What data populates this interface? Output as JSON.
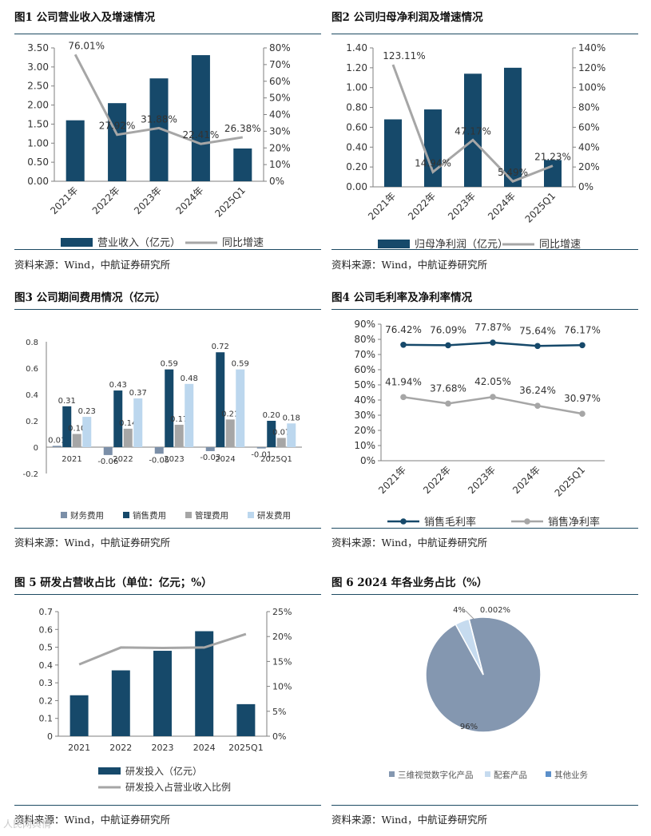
{
  "panels": [
    {
      "title": "图1 公司营业收入及增速情况",
      "source": "资料来源：Wind，中航证券研究所",
      "chart_data": {
        "type": "bar",
        "categories": [
          "2021年",
          "2022年",
          "2023年",
          "2024年",
          "2025Q1"
        ],
        "y_ticks": [
          "0.00",
          "0.50",
          "1.00",
          "1.50",
          "2.00",
          "2.50",
          "3.00",
          "3.50"
        ],
        "y2_ticks": [
          "0%",
          "10%",
          "20%",
          "30%",
          "40%",
          "50%",
          "60%",
          "70%",
          "80%"
        ],
        "ylim": [
          0,
          3.5
        ],
        "y2lim": [
          0,
          80
        ],
        "series": [
          {
            "name": "营业收入（亿元）",
            "kind": "bar",
            "values": [
              1.6,
              2.05,
              2.7,
              3.31,
              0.86
            ]
          },
          {
            "name": "同比增速",
            "kind": "line",
            "values": [
              76.01,
              27.92,
              31.88,
              22.41,
              26.38
            ],
            "labels": [
              "76.01%",
              "27.92%",
              "31.88%",
              "22.41%",
              "26.38%"
            ]
          }
        ]
      }
    },
    {
      "title": "图2 公司归母净利润及增速情况",
      "source": "资料来源：Wind，中航证券研究所",
      "chart_data": {
        "type": "bar",
        "categories": [
          "2021年",
          "2022年",
          "2023年",
          "2024年",
          "2025Q1"
        ],
        "y_ticks": [
          "0.00",
          "0.20",
          "0.40",
          "0.60",
          "0.80",
          "1.00",
          "1.20",
          "1.40"
        ],
        "y2_ticks": [
          "0%",
          "20%",
          "40%",
          "60%",
          "80%",
          "100%",
          "120%",
          "140%"
        ],
        "ylim": [
          0,
          1.4
        ],
        "y2lim": [
          0,
          140
        ],
        "series": [
          {
            "name": "归母净利润（亿元）",
            "kind": "bar",
            "values": [
              0.68,
              0.78,
              1.14,
              1.2,
              0.27
            ]
          },
          {
            "name": "同比增速",
            "kind": "line",
            "values": [
              123.11,
              14.94,
              47.17,
              5.49,
              21.23
            ],
            "labels": [
              "123.11%",
              "14.94%",
              "47.17%",
              "5.49%",
              "21.23%"
            ]
          }
        ]
      }
    },
    {
      "title": "图3 公司期间费用情况（亿元）",
      "source": "资料来源：Wind，中航证券研究所",
      "chart_data": {
        "type": "bar",
        "categories": [
          "2021",
          "2022",
          "2023",
          "2024",
          "2025Q1"
        ],
        "y_ticks": [
          "-0.2",
          "0",
          "0.2",
          "0.4",
          "0.6",
          "0.8"
        ],
        "ylim": [
          -0.2,
          0.8
        ],
        "series": [
          {
            "name": "财务费用",
            "color": "#7b8fa8",
            "values": [
              0.01,
              -0.06,
              -0.05,
              -0.03,
              -0.01
            ],
            "labels": [
              "0.01",
              "-0.06",
              "-0.05",
              "-0.03",
              "-0.01"
            ]
          },
          {
            "name": "销售费用",
            "color": "#16496a",
            "values": [
              0.31,
              0.43,
              0.59,
              0.72,
              0.2
            ],
            "labels": [
              "0.31",
              "0.43",
              "0.59",
              "0.72",
              "0.20"
            ]
          },
          {
            "name": "管理费用",
            "color": "#a6a6a6",
            "values": [
              0.1,
              0.14,
              0.17,
              0.21,
              0.07
            ],
            "labels": [
              "0.10",
              "0.14",
              "0.17",
              "0.21",
              "0.07"
            ]
          },
          {
            "name": "研发费用",
            "color": "#bcd7ee",
            "values": [
              0.23,
              0.37,
              0.48,
              0.59,
              0.18
            ],
            "labels": [
              "0.23",
              "0.37",
              "0.48",
              "0.59",
              "0.18"
            ]
          }
        ]
      }
    },
    {
      "title": "图4 公司毛利率及净利率情况",
      "source": "资料来源：Wind，中航证券研究所",
      "chart_data": {
        "type": "line",
        "categories": [
          "2021年",
          "2022年",
          "2023年",
          "2024年",
          "2025Q1"
        ],
        "y_ticks": [
          "0%",
          "10%",
          "20%",
          "30%",
          "40%",
          "50%",
          "60%",
          "70%",
          "80%",
          "90%"
        ],
        "ylim": [
          0,
          90
        ],
        "series": [
          {
            "name": "销售毛利率",
            "color": "#16496a",
            "values": [
              76.42,
              76.09,
              77.87,
              75.64,
              76.17
            ],
            "labels": [
              "76.42%",
              "76.09%",
              "77.87%",
              "75.64%",
              "76.17%"
            ]
          },
          {
            "name": "销售净利率",
            "color": "#a6a6a6",
            "values": [
              41.94,
              37.68,
              42.05,
              36.24,
              30.97
            ],
            "labels": [
              "41.94%",
              "37.68%",
              "42.05%",
              "36.24%",
              "30.97%"
            ]
          }
        ]
      }
    },
    {
      "title": "图 5 研发占营收占比（单位：亿元；%）",
      "source": "资料来源：Wind，中航证券研究所",
      "chart_data": {
        "type": "bar",
        "categories": [
          "2021",
          "2022",
          "2023",
          "2024",
          "2025Q1"
        ],
        "y_ticks": [
          "0",
          "0.1",
          "0.2",
          "0.3",
          "0.4",
          "0.5",
          "0.6",
          "0.7"
        ],
        "y2_ticks": [
          "0%",
          "5%",
          "10%",
          "15%",
          "20%",
          "25%"
        ],
        "ylim": [
          0,
          0.7
        ],
        "y2lim": [
          0,
          25
        ],
        "series": [
          {
            "name": "研发投入（亿元）",
            "kind": "bar",
            "values": [
              0.23,
              0.37,
              0.48,
              0.59,
              0.18
            ]
          },
          {
            "name": "研发投入占营业收入比例",
            "kind": "line",
            "values": [
              14.4,
              17.8,
              17.7,
              17.8,
              20.5
            ]
          }
        ]
      }
    },
    {
      "title": "图 6 2024 年各业务占比（%）",
      "source": "资料来源：Wind，中航证券研究所",
      "chart_data": {
        "type": "pie",
        "slices": [
          {
            "name": "三维视觉数字化产品",
            "value": 95.998,
            "label": "96%",
            "color": "#8497b0"
          },
          {
            "name": "配套产品",
            "value": 4,
            "label": "4%",
            "color": "#c6dbef"
          },
          {
            "name": "其他业务",
            "value": 0.002,
            "label": "0.002%",
            "color": "#5b8fc9"
          }
        ]
      }
    }
  ],
  "watermark": "人民网舆情"
}
